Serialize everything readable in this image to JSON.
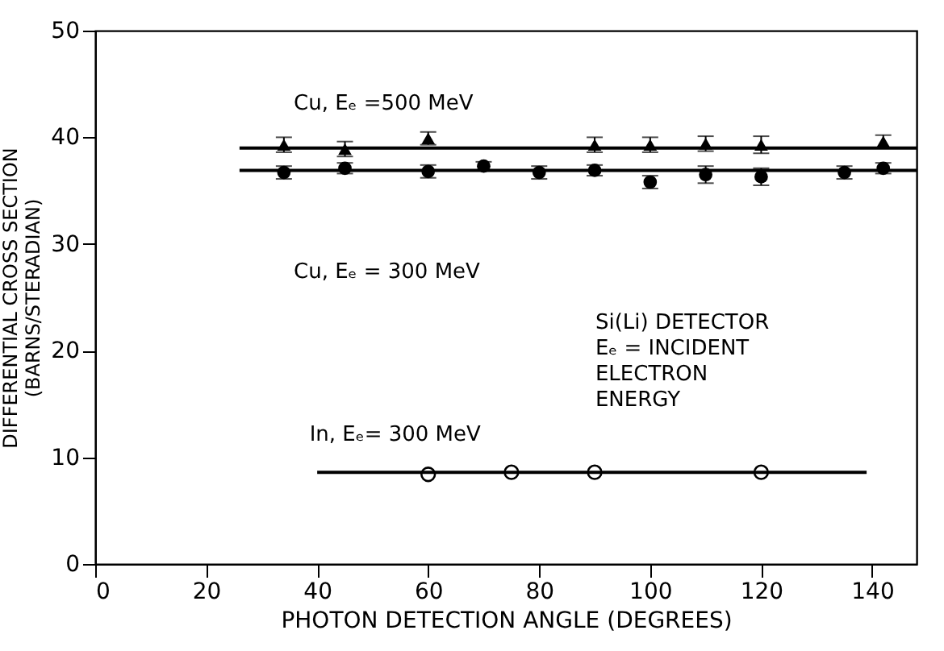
{
  "chart_data": {
    "type": "scatter",
    "xlabel": "PHOTON DETECTION ANGLE (DEGREES)",
    "ylabel": "DIFFERENTIAL CROSS SECTION\n(BARNS/STERADIAN)",
    "xlim": [
      0,
      148
    ],
    "ylim": [
      0,
      50
    ],
    "xticks": [
      0,
      20,
      40,
      60,
      80,
      100,
      120,
      140
    ],
    "yticks": [
      0,
      10,
      20,
      30,
      40,
      50
    ],
    "grid": false,
    "series": [
      {
        "marker": "triangle",
        "color": "#000000",
        "x": [
          34,
          45,
          60,
          90,
          100,
          110,
          120,
          142
        ],
        "values": [
          39.3,
          38.9,
          39.9,
          39.3,
          39.3,
          39.4,
          39.3,
          39.6
        ],
        "errors": [
          0.7,
          0.7,
          0.6,
          0.7,
          0.7,
          0.7,
          0.8,
          0.6
        ]
      },
      {
        "marker": "circle",
        "color": "#000000",
        "x": [
          34,
          45,
          60,
          70,
          80,
          90,
          100,
          110,
          120,
          135,
          142
        ],
        "values": [
          36.7,
          37.1,
          36.8,
          37.3,
          36.7,
          36.9,
          35.8,
          36.5,
          36.3,
          36.7,
          37.1
        ],
        "errors": [
          0.6,
          0.5,
          0.6,
          0.4,
          0.6,
          0.5,
          0.6,
          0.8,
          0.8,
          0.6,
          0.5
        ]
      },
      {
        "marker": "circle",
        "color": "#000000",
        "x": [
          60,
          75,
          90,
          120
        ],
        "values": [
          8.4,
          8.6,
          8.6,
          8.6
        ]
      },
      {
        "type": "line",
        "color": "#000000",
        "x": [
          26,
          148
        ],
        "values": [
          39.0,
          39.0
        ]
      },
      {
        "type": "line",
        "color": "#000000",
        "x": [
          26,
          148
        ],
        "values": [
          36.9,
          36.9
        ]
      },
      {
        "type": "line",
        "color": "#000000",
        "x": [
          40,
          139
        ],
        "values": [
          8.6,
          8.6
        ]
      }
    ],
    "annotations": [
      "Cu, Eₑ =500 MeV",
      "Cu, Eₑ = 300 MeV",
      "In, Eₑ= 300 MeV",
      "Si(Li) DETECTOR\nEₑ = INCIDENT\n     ELECTRON\n     ENERGY"
    ]
  }
}
